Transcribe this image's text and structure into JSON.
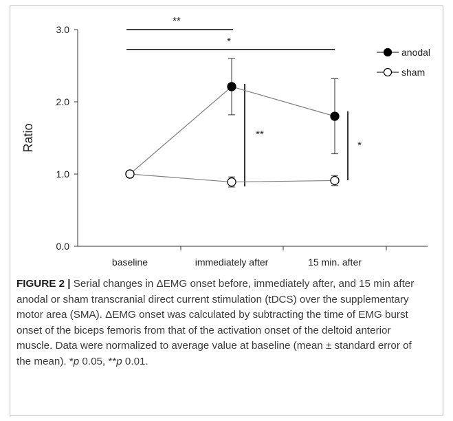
{
  "chart_data": {
    "type": "line",
    "categories": [
      "baseline",
      "immediately after",
      "15 min. after"
    ],
    "series": [
      {
        "name": "anodal",
        "marker": "filled-circle",
        "values": [
          1.0,
          2.21,
          1.8
        ],
        "errors": [
          0,
          0.39,
          0.52
        ]
      },
      {
        "name": "sham",
        "marker": "open-circle",
        "values": [
          1.0,
          0.89,
          0.91
        ],
        "errors": [
          0,
          0.07,
          0.07
        ]
      }
    ],
    "ylabel": "Ratio",
    "ylim": [
      0.0,
      3.0
    ],
    "yticks": [
      "0.0",
      "1.0",
      "2.0",
      "3.0"
    ],
    "legend_position": "top-right",
    "grid": false,
    "significance": [
      {
        "label": "**",
        "between": "baseline vs immediately after"
      },
      {
        "label": "*",
        "between": "baseline vs 15 min. after"
      },
      {
        "label": "**",
        "between": "anodal vs sham at immediately after"
      },
      {
        "label": "*",
        "between": "anodal vs sham at 15 min. after"
      }
    ],
    "colors": {
      "line": "#7f7f7f",
      "marker": "#000000",
      "bracket": "#000000"
    }
  },
  "caption": {
    "label": "FIGURE 2 |",
    "text": "Serial changes in ΔEMG onset before, immediately after, and 15 min after anodal or sham transcranial direct current stimulation (tDCS) over the supplementary motor area (SMA). ΔEMG onset was calculated by subtracting the time of EMG burst onset of the biceps femoris from that of the activation onset of the deltoid anterior muscle. Data were normalized to average value at baseline (mean ± standard error of the mean). *p < 0.05, **p < 0.01."
  }
}
